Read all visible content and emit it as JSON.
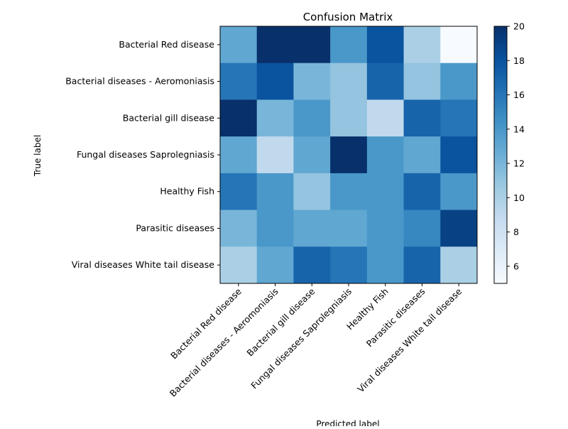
{
  "chart_data": {
    "type": "heatmap",
    "title": "Confusion Matrix",
    "xlabel": "Predicted label",
    "ylabel": "True label",
    "row_labels": [
      "Bacterial Red disease",
      "Bacterial diseases - Aeromoniasis",
      "Bacterial gill disease",
      "Fungal diseases Saprolegniasis",
      "Healthy Fish",
      "Parasitic diseases",
      "Viral diseases White tail disease"
    ],
    "col_labels": [
      "Bacterial Red disease",
      "Bacterial diseases - Aeromoniasis",
      "Bacterial gill disease",
      "Fungal diseases Saprolegniasis",
      "Healthy Fish",
      "Parasitic diseases",
      "Viral diseases White tail disease"
    ],
    "values": [
      [
        13,
        20,
        20,
        14,
        18,
        10,
        5
      ],
      [
        16,
        18,
        12,
        11,
        17,
        11,
        14
      ],
      [
        20,
        12,
        14,
        11,
        9,
        17,
        16
      ],
      [
        13,
        9,
        13,
        20,
        14,
        13,
        18
      ],
      [
        16,
        14,
        11,
        14,
        14,
        17,
        14
      ],
      [
        12,
        14,
        13,
        13,
        14,
        15,
        19
      ],
      [
        10,
        13,
        17,
        16,
        14,
        17,
        10
      ]
    ],
    "colormap": "Blues",
    "colorbar": {
      "min": 5,
      "max": 20,
      "ticks": [
        6,
        8,
        10,
        12,
        14,
        16,
        18,
        20
      ]
    }
  }
}
